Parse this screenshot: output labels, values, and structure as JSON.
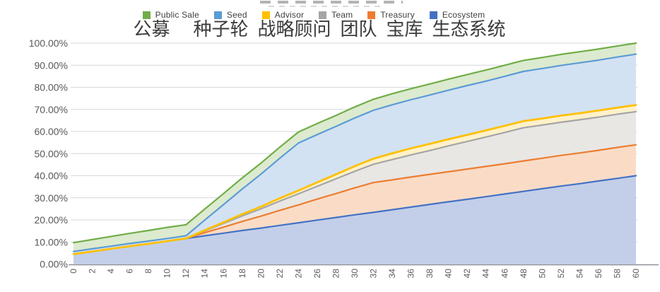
{
  "page": {
    "background_color": "#ffffff",
    "title_cropped": true
  },
  "legend": {
    "position": "top",
    "items": [
      {
        "key": "public_sale",
        "label": "Public Sale",
        "label_zh": "公募",
        "color": "#70AD47"
      },
      {
        "key": "seed",
        "label": "Seed",
        "label_zh": "种子轮",
        "color": "#5B9BD5"
      },
      {
        "key": "advisor",
        "label": "Advisor",
        "label_zh": "战略顾问",
        "color": "#FFC000"
      },
      {
        "key": "team",
        "label": "Team",
        "label_zh": "团队",
        "color": "#A5A5A5"
      },
      {
        "key": "treasury",
        "label": "Treasury",
        "label_zh": "宝库",
        "color": "#ED7D31"
      },
      {
        "key": "ecosystem",
        "label": "Ecosystem",
        "label_zh": "生态系统",
        "color": "#4472C4"
      }
    ]
  },
  "chart_data": {
    "type": "area",
    "stacked": true,
    "title": "",
    "xlabel": "",
    "ylabel": "",
    "x_unit": "months",
    "ylim": [
      0,
      100
    ],
    "grid": "horizontal",
    "x_tick_rotation_deg": 90,
    "y_ticks": [
      "0.00%",
      "10.00%",
      "20.00%",
      "30.00%",
      "40.00%",
      "50.00%",
      "60.00%",
      "70.00%",
      "80.00%",
      "90.00%",
      "100.00%"
    ],
    "x": [
      0,
      2,
      4,
      6,
      8,
      10,
      12,
      14,
      16,
      18,
      20,
      22,
      24,
      26,
      28,
      30,
      32,
      34,
      36,
      38,
      40,
      42,
      44,
      46,
      48,
      50,
      52,
      54,
      56,
      58,
      60
    ],
    "values_unit": "percent of total supply unlocked (cumulative)",
    "stack_order": "bottom_to_top",
    "series": [
      {
        "name": "Ecosystem",
        "name_zh": "生态系统",
        "line_color": "#4472C4",
        "fill_color": "#C3CFE9",
        "values": [
          4.5,
          5.7,
          6.9,
          8.1,
          9.2,
          10.4,
          11.6,
          12.8,
          14.0,
          15.2,
          16.3,
          17.5,
          18.7,
          19.9,
          21.1,
          22.3,
          23.4,
          24.6,
          25.8,
          27.0,
          28.2,
          29.3,
          30.5,
          31.7,
          32.9,
          34.1,
          35.3,
          36.4,
          37.6,
          38.8,
          40.0
        ]
      },
      {
        "name": "Treasury",
        "name_zh": "宝库",
        "line_color": "#ED7D31",
        "fill_color": "#FADCC6",
        "values": [
          0,
          0,
          0,
          0,
          0,
          0,
          0,
          1.4,
          2.7,
          4.1,
          5.4,
          6.8,
          8.1,
          9.5,
          10.8,
          12.2,
          13.5,
          13.5,
          13.6,
          13.6,
          13.6,
          13.7,
          13.7,
          13.7,
          13.8,
          13.8,
          13.9,
          13.9,
          13.9,
          14.0,
          14.0
        ]
      },
      {
        "name": "Team",
        "name_zh": "团队",
        "line_color": "#A5A5A5",
        "fill_color": "#E8E7E4",
        "values": [
          0,
          0,
          0,
          0,
          0,
          0,
          0,
          0.8,
          1.7,
          2.5,
          3.3,
          4.2,
          5.0,
          5.8,
          6.7,
          7.5,
          8.3,
          9.2,
          10.0,
          10.8,
          11.7,
          12.5,
          13.3,
          14.2,
          15.0,
          15.0,
          15.0,
          15.0,
          15.0,
          15.0,
          15.0
        ]
      },
      {
        "name": "Advisor",
        "name_zh": "战略顾问",
        "line_color": "#FFC000",
        "fill_color": "#FFF1C9",
        "values": [
          0,
          0,
          0,
          0,
          0,
          0,
          0,
          0.3,
          0.5,
          0.8,
          1.0,
          1.3,
          1.5,
          1.8,
          2.0,
          2.3,
          2.5,
          2.8,
          3.0,
          3.0,
          3.0,
          3.0,
          3.0,
          3.0,
          3.0,
          3.0,
          3.0,
          3.0,
          3.0,
          3.0,
          3.0
        ]
      },
      {
        "name": "Seed",
        "name_zh": "种子轮",
        "line_color": "#5B9BD5",
        "fill_color": "#D3E2F2",
        "values": [
          1.2,
          1.2,
          1.2,
          1.2,
          1.2,
          1.2,
          1.2,
          4.6,
          8.0,
          11.4,
          14.7,
          18.1,
          21.5,
          21.6,
          21.7,
          21.8,
          21.9,
          22.0,
          22.0,
          22.1,
          22.2,
          22.3,
          22.3,
          22.4,
          22.5,
          22.6,
          22.7,
          22.8,
          22.8,
          22.9,
          23.0
        ]
      },
      {
        "name": "Public Sale",
        "name_zh": "公募",
        "line_color": "#70AD47",
        "fill_color": "#DCEACF",
        "values": [
          4.0,
          4.2,
          4.4,
          4.6,
          4.8,
          5.0,
          5.0,
          5.0,
          5.0,
          5.0,
          5.0,
          5.0,
          5.0,
          5.0,
          5.0,
          5.0,
          5.0,
          5.0,
          5.0,
          5.0,
          5.0,
          5.0,
          5.0,
          5.0,
          5.0,
          5.0,
          5.0,
          5.0,
          5.0,
          5.0,
          5.0
        ]
      }
    ],
    "style": {
      "gridline_color": "#D4D7DC",
      "axis_line_color": "#8C9096",
      "tick_label_color": "#595959"
    }
  }
}
